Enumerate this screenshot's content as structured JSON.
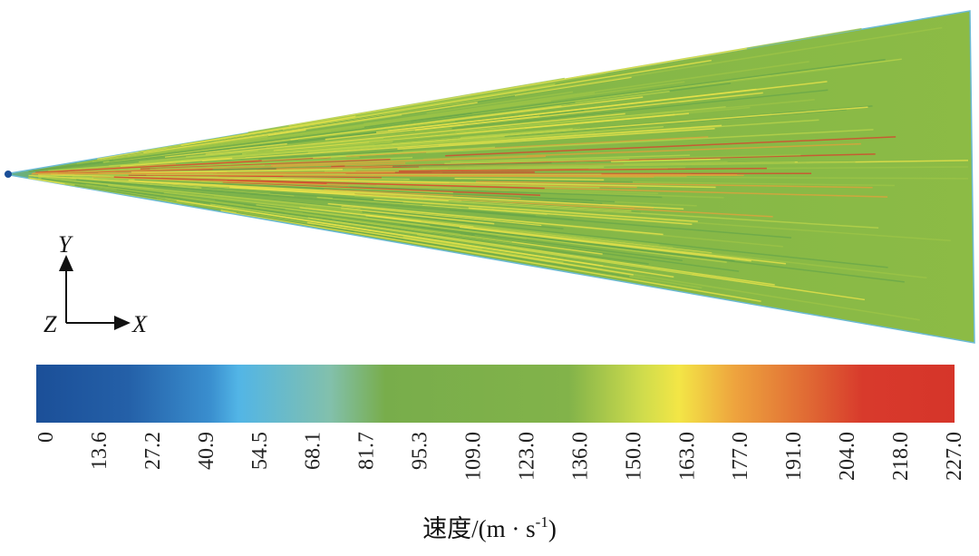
{
  "axes": {
    "y": "Y",
    "z": "Z",
    "x": "X"
  },
  "colorbar": {
    "ticks": [
      "0",
      "13.6",
      "27.2",
      "40.9",
      "54.5",
      "68.1",
      "81.7",
      "95.3",
      "109.0",
      "123.0",
      "136.0",
      "150.0",
      "163.0",
      "177.0",
      "191.0",
      "204.0",
      "218.0",
      "227.0"
    ],
    "label": {
      "text": "速度/(m · s",
      "sup": "-1",
      "close": ")"
    }
  }
}
